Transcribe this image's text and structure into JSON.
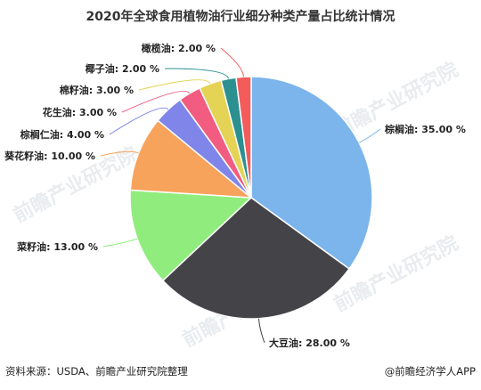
{
  "chart_data": {
    "type": "pie",
    "title": "2020年全球食用植物油行业细分种类产量占比统计情况",
    "slices": [
      {
        "name": "棕榈油",
        "value": 35.0,
        "label": "棕榈油: 35.00 %",
        "color": "#7cb5ec"
      },
      {
        "name": "大豆油",
        "value": 28.0,
        "label": "大豆油: 28.00 %",
        "color": "#434348"
      },
      {
        "name": "菜籽油",
        "value": 13.0,
        "label": "菜籽油: 13.00 %",
        "color": "#90ed7d"
      },
      {
        "name": "葵花籽油",
        "value": 10.0,
        "label": "葵花籽油: 10.00 %",
        "color": "#f7a35c"
      },
      {
        "name": "棕榈仁油",
        "value": 4.0,
        "label": "棕榈仁油: 4.00 %",
        "color": "#8085e9"
      },
      {
        "name": "花生油",
        "value": 3.0,
        "label": "花生油: 3.00 %",
        "color": "#f15c80"
      },
      {
        "name": "棉籽油",
        "value": 3.0,
        "label": "棉籽油: 3.00 %",
        "color": "#e4d354"
      },
      {
        "name": "椰子油",
        "value": 2.0,
        "label": "椰子油: 2.00 %",
        "color": "#2b908f"
      },
      {
        "name": "橄榄油",
        "value": 2.0,
        "label": "橄榄油: 2.00 %",
        "color": "#f45b5b"
      }
    ],
    "start_angle_deg": 0,
    "direction": "clockwise",
    "legend": "none"
  },
  "footer": {
    "source": "资料来源：USDA、前瞻产业研究院整理",
    "brand": "@前瞻经济学人APP"
  },
  "watermark": {
    "text": "前瞻产业研究院"
  }
}
